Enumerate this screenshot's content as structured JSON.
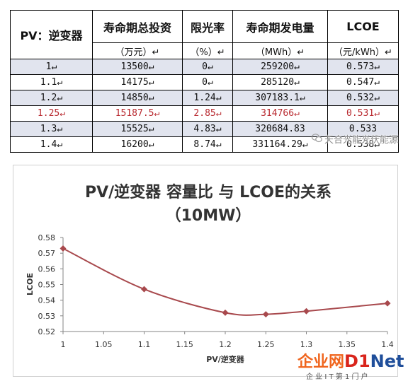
{
  "table": {
    "corner_header": "PV：逆变器",
    "headers": [
      "寿命期总投资",
      "限光率",
      "寿命期发电量",
      "LCOE"
    ],
    "units": [
      "（万元）↵",
      "（%）↵",
      "（MWh）↵",
      "（元/kWh）↵"
    ],
    "rows": [
      {
        "cells": [
          "1↵",
          "13500↵",
          "0↵",
          "259200↵",
          "0.573↵"
        ]
      },
      {
        "cells": [
          "1.1↵",
          "14175↵",
          "0↵",
          "285120↵",
          "0.547↵"
        ]
      },
      {
        "cells": [
          "1.2↵",
          "14850↵",
          "1.24↵",
          "307183.1↵",
          "0.532↵"
        ]
      },
      {
        "cells": [
          "1.25↵",
          "15187.5↵",
          "2.85↵",
          "314766↵",
          "0.531↵"
        ],
        "color": "#b8282e"
      },
      {
        "cells": [
          "1.3↵",
          "15525↵",
          "4.83↵",
          "320684.83",
          "0.533"
        ]
      },
      {
        "cells": [
          "1.4↵",
          "16200↵",
          "8.74↵",
          "331164.29↵",
          "0.538↵"
        ]
      }
    ]
  },
  "chart_data": {
    "type": "line",
    "title": "PV/逆变器 容量比 与 LCOE的关系",
    "subtitle": "（10MW）",
    "xlabel": "PV/逆变器",
    "ylabel": "LCOE",
    "x": [
      1,
      1.1,
      1.2,
      1.25,
      1.3,
      1.4
    ],
    "series": [
      {
        "values": [
          0.573,
          0.547,
          0.532,
          0.531,
          0.533,
          0.538
        ]
      }
    ],
    "xlim": [
      1,
      1.4
    ],
    "ylim": [
      0.52,
      0.58
    ],
    "xticks": [
      "1",
      "1.05",
      "1.1",
      "1.15",
      "1.2",
      "1.25",
      "1.3",
      "1.35",
      "1.4"
    ],
    "yticks": [
      "0.52",
      "0.53",
      "0.54",
      "0.55",
      "0.56",
      "0.57",
      "0.58"
    ],
    "grid": false,
    "legend": "none",
    "smooth": true,
    "color": "#a8494d"
  },
  "watermarks": {
    "wechat_account": "天合光能光伏能源",
    "logo_name": "企业网",
    "logo_brand": [
      "D",
      "1",
      "Net"
    ],
    "logo_tagline": "企 业 I T 第 1 门 户"
  }
}
